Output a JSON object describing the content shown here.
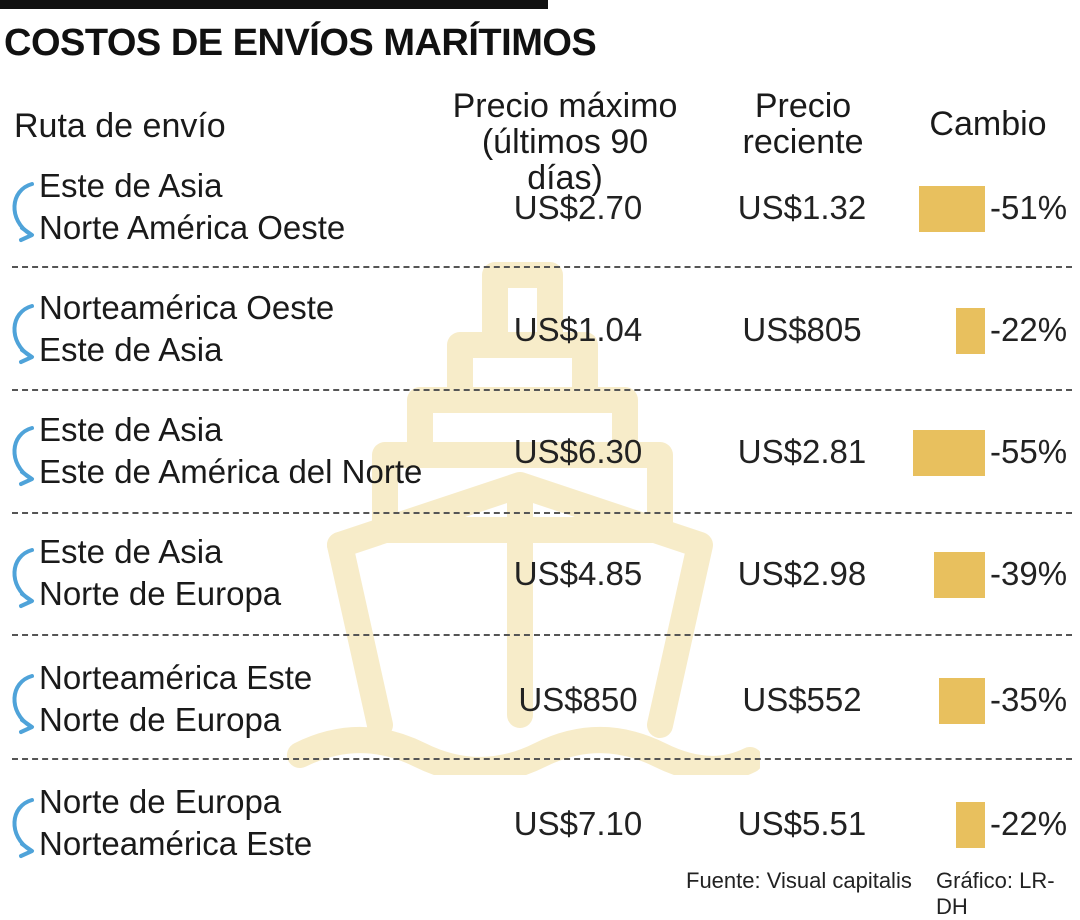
{
  "title": "COSTOS DE ENVÍOS MARÍTIMOS",
  "headers": {
    "route": "Ruta de envío",
    "max_line1": "Precio máximo",
    "max_line2": "(últimos 90 días)",
    "recent_line1": "Precio",
    "recent_line2": "reciente",
    "change": "Cambio"
  },
  "rows": [
    {
      "from": "Este de Asia",
      "to": "Norte América Oeste",
      "max_price": "US$2.70",
      "recent_price": "US$1.32",
      "change": "-51%"
    },
    {
      "from": "Norteamérica Oeste",
      "to": "Este de Asia",
      "max_price": "US$1.04",
      "recent_price": "US$805",
      "change": "-22%"
    },
    {
      "from": "Este de Asia",
      "to": "Este de América del Norte",
      "max_price": "US$6.30",
      "recent_price": "US$2.81",
      "change": "-55%"
    },
    {
      "from": "Este de Asia",
      "to": "Norte de Europa",
      "max_price": "US$4.85",
      "recent_price": "US$2.98",
      "change": "-39%"
    },
    {
      "from": "Norteamérica Este",
      "to": "Norte de Europa",
      "max_price": "US$850",
      "recent_price": "US$552",
      "change": "-35%"
    },
    {
      "from": "Norte de Europa",
      "to": "Norteamérica Este",
      "max_price": "US$7.10",
      "recent_price": "US$5.51",
      "change": "-22%"
    }
  ],
  "chart_data": {
    "type": "table",
    "title": "COSTOS DE ENVÍOS MARÍTIMOS",
    "columns": [
      "Ruta de envío",
      "Precio máximo (últimos 90 días)",
      "Precio reciente",
      "Cambio"
    ],
    "categories": [
      "Este de Asia → Norte América Oeste",
      "Norteamérica Oeste → Este de Asia",
      "Este de Asia → Este de América del Norte",
      "Este de Asia → Norte de Europa",
      "Norteamérica Este → Norte de Europa",
      "Norte de Europa → Norteamérica Este"
    ],
    "values": [
      -51,
      -22,
      -55,
      -39,
      -35,
      -22
    ],
    "value_unit": "%"
  },
  "footer": {
    "source": "Fuente: Visual capitalis",
    "credit": "Gráfico: LR-DH"
  },
  "colors": {
    "bar": "#e8c05e",
    "arrow": "#4fa3d9",
    "watermark": "#f7ecc9"
  },
  "icons": {
    "watermark": "ship-icon",
    "route": "curved-arrow-icon"
  }
}
